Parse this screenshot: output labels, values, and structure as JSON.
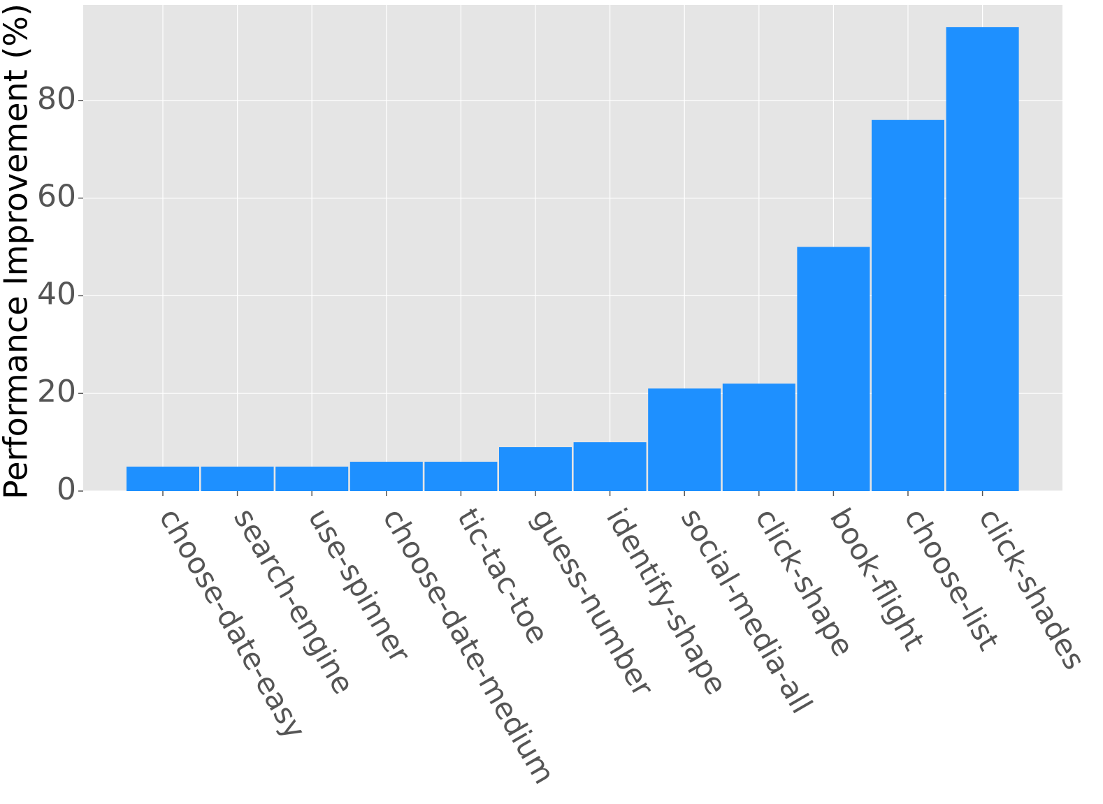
{
  "chart_data": {
    "type": "bar",
    "title": "",
    "xlabel": "",
    "ylabel": "Performance Improvement (%)",
    "ylim": [
      0,
      100
    ],
    "yticks": [
      0,
      20,
      40,
      60,
      80
    ],
    "grid": true,
    "legend": "none",
    "categories": [
      "choose-date-easy",
      "search-engine",
      "use-spinner",
      "choose-date-medium",
      "tic-tac-toe",
      "guess-number",
      "identify-shape",
      "social-media-all",
      "click-shape",
      "book-flight",
      "choose-list",
      "click-shades"
    ],
    "values": [
      5,
      5,
      5,
      6,
      6,
      9,
      10,
      21,
      22,
      50,
      76,
      95
    ],
    "colors": {
      "bar": "#1e90ff",
      "plot_background": "#e5e5e5",
      "grid": "#ffffff",
      "tick_label": "#555555"
    }
  }
}
